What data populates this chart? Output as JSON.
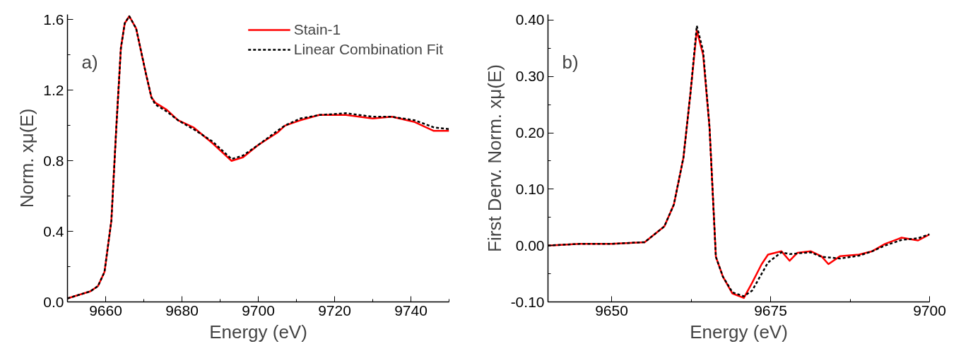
{
  "chart_data": [
    {
      "type": "line",
      "xlabel": "Energy (eV)",
      "ylabel": "Norm. xμ(E)",
      "annotations": [
        "a)"
      ],
      "xlim": [
        9650,
        9750
      ],
      "xticks": [
        9660,
        9680,
        9700,
        9720,
        9740
      ],
      "ylim": [
        0,
        1.63
      ],
      "yticks": [
        {
          "value": 0,
          "label": "0.0"
        },
        0.4,
        0.8,
        1.2,
        1.6
      ],
      "grid": false,
      "legend": "top right",
      "marker": "none",
      "series": [
        {
          "name": "Stain-1",
          "color": "#ff0000",
          "line_style": "solid",
          "x": [
            9650,
            9653,
            9656,
            9658,
            9659.7,
            9661.5,
            9662.8,
            9664,
            9665,
            9666.2,
            9668,
            9670.5,
            9672,
            9673,
            9676,
            9679,
            9683,
            9688,
            9693,
            9696,
            9700,
            9705,
            9707,
            9711,
            9716,
            9723,
            9730,
            9735,
            9741,
            9746,
            9750
          ],
          "values": [
            0.02,
            0.04,
            0.06,
            0.09,
            0.17,
            0.46,
            0.99,
            1.44,
            1.58,
            1.62,
            1.55,
            1.3,
            1.16,
            1.13,
            1.09,
            1.03,
            0.99,
            0.9,
            0.8,
            0.82,
            0.89,
            0.96,
            1.0,
            1.03,
            1.06,
            1.06,
            1.04,
            1.05,
            1.02,
            0.97,
            0.97
          ]
        },
        {
          "name": "Linear Combination Fit",
          "color": "#000000",
          "line_style": "dashed",
          "x": [
            9650,
            9653,
            9656,
            9658,
            9659.7,
            9661.5,
            9662.8,
            9664,
            9665,
            9666.2,
            9668,
            9670.5,
            9672,
            9673,
            9676,
            9679,
            9683,
            9688,
            9693,
            9696,
            9700,
            9705,
            9707,
            9711,
            9716,
            9723,
            9730,
            9735,
            9741,
            9746,
            9750
          ],
          "values": [
            0.02,
            0.04,
            0.06,
            0.09,
            0.17,
            0.46,
            0.99,
            1.44,
            1.58,
            1.62,
            1.55,
            1.3,
            1.16,
            1.12,
            1.08,
            1.03,
            0.98,
            0.91,
            0.81,
            0.83,
            0.89,
            0.97,
            1.0,
            1.04,
            1.06,
            1.07,
            1.05,
            1.05,
            1.03,
            0.99,
            0.98
          ]
        }
      ]
    },
    {
      "type": "line",
      "xlabel": "Energy (eV)",
      "ylabel": "First Derv. Norm. xμ(E)",
      "annotations": [
        "b)"
      ],
      "xlim": [
        9640,
        9700
      ],
      "xticks": [
        9650,
        9675,
        9700
      ],
      "ylim": [
        -0.1,
        0.41
      ],
      "yticks": [
        {
          "value": -0.1,
          "label": "-0.10"
        },
        {
          "value": 0,
          "label": "0.00"
        },
        {
          "value": 0.1,
          "label": "0.10"
        },
        {
          "value": 0.2,
          "label": "0.20"
        },
        {
          "value": 0.3,
          "label": "0.30"
        },
        {
          "value": 0.4,
          "label": "0.40"
        }
      ],
      "grid": false,
      "legend": false,
      "marker": "none",
      "series": [
        {
          "color": "#ff0000",
          "line_style": "solid",
          "x": [
            9640,
            9645,
            9650,
            9655.2,
            9658.3,
            9659.8,
            9661.3,
            9662.4,
            9663.4,
            9664.4,
            9665.4,
            9666.4,
            9667.5,
            9669,
            9670.8,
            9672.1,
            9673.6,
            9674.6,
            9676.7,
            9678,
            9679.2,
            9681.3,
            9683,
            9684.1,
            9685.9,
            9688.9,
            9691,
            9693,
            9695.6,
            9698.2,
            9700
          ],
          "values": [
            0.0,
            0.003,
            0.003,
            0.006,
            0.034,
            0.073,
            0.156,
            0.27,
            0.382,
            0.338,
            0.21,
            -0.02,
            -0.055,
            -0.085,
            -0.093,
            -0.066,
            -0.033,
            -0.016,
            -0.01,
            -0.027,
            -0.013,
            -0.01,
            -0.019,
            -0.033,
            -0.019,
            -0.016,
            -0.01,
            0.003,
            0.014,
            0.009,
            0.02
          ]
        },
        {
          "color": "#000000",
          "line_style": "dashed",
          "x": [
            9640,
            9645,
            9650,
            9655.2,
            9658.3,
            9659.8,
            9661.3,
            9662.4,
            9663.4,
            9664.4,
            9665.4,
            9666.4,
            9667.5,
            9669,
            9670.8,
            9672.1,
            9673.6,
            9674.6,
            9676.7,
            9678,
            9679.2,
            9681.3,
            9683,
            9684.1,
            9685.9,
            9688.9,
            9691,
            9693,
            9695.6,
            9698.2,
            9700
          ],
          "values": [
            0.0,
            0.003,
            0.003,
            0.006,
            0.034,
            0.073,
            0.156,
            0.27,
            0.39,
            0.345,
            0.21,
            -0.02,
            -0.055,
            -0.083,
            -0.09,
            -0.08,
            -0.05,
            -0.03,
            -0.012,
            -0.015,
            -0.014,
            -0.012,
            -0.02,
            -0.021,
            -0.023,
            -0.018,
            -0.01,
            0.0,
            0.01,
            0.013,
            0.02
          ]
        }
      ]
    }
  ]
}
